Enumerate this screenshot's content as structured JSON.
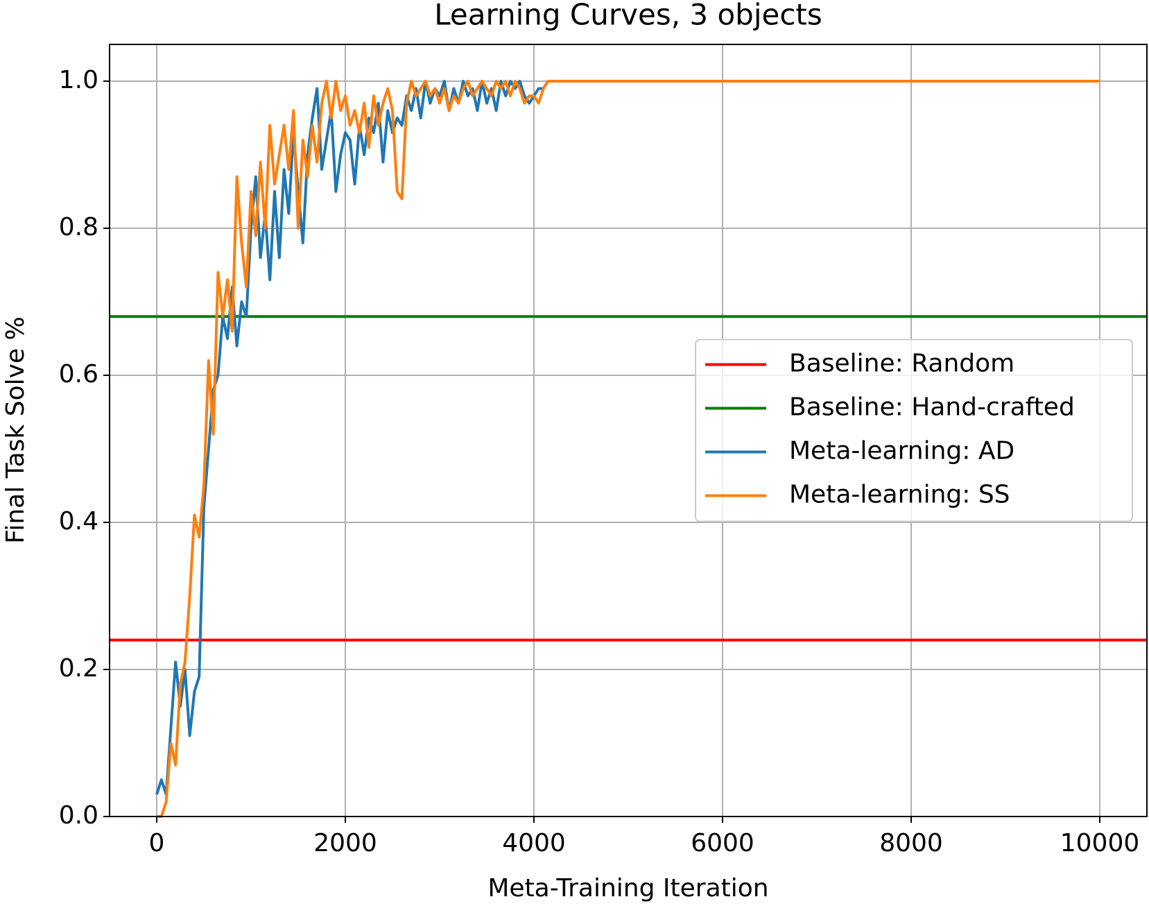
{
  "chart_data": {
    "type": "line",
    "title": "Learning Curves, 3 objects",
    "xlabel": "Meta-Training Iteration",
    "ylabel": "Final Task Solve %",
    "xlim": [
      -500,
      10500
    ],
    "ylim": [
      0,
      1.05
    ],
    "xticks": [
      0,
      2000,
      4000,
      6000,
      8000,
      10000
    ],
    "yticks": [
      {
        "value": 0,
        "label": "0.0"
      },
      0.2,
      0.4,
      0.6,
      0.8,
      {
        "value": 1,
        "label": "1.0"
      }
    ],
    "grid": true,
    "legend": "center right",
    "x": [
      0,
      50,
      100,
      150,
      200,
      250,
      300,
      350,
      400,
      450,
      500,
      550,
      600,
      650,
      700,
      750,
      800,
      850,
      900,
      950,
      1000,
      1050,
      1100,
      1150,
      1200,
      1250,
      1300,
      1350,
      1400,
      1450,
      1500,
      1550,
      1600,
      1650,
      1700,
      1750,
      1800,
      1850,
      1900,
      1950,
      2000,
      2050,
      2100,
      2150,
      2200,
      2250,
      2300,
      2350,
      2400,
      2450,
      2500,
      2550,
      2600,
      2650,
      2700,
      2750,
      2800,
      2850,
      2900,
      2950,
      3000,
      3050,
      3100,
      3150,
      3200,
      3250,
      3300,
      3350,
      3400,
      3450,
      3500,
      3550,
      3600,
      3650,
      3700,
      3750,
      3800,
      3850,
      3900,
      3950,
      4000,
      4050,
      4100,
      4150,
      4200,
      10000
    ],
    "series": [
      {
        "name": "Baseline: Random",
        "color": "#ff0000",
        "y": 0.24
      },
      {
        "name": "Baseline: Hand-crafted",
        "color": "#008000",
        "y": 0.68
      },
      {
        "name": "Meta-learning: AD",
        "color": "#1f77b4",
        "values": [
          0.03,
          0.05,
          0.03,
          0.12,
          0.21,
          0.15,
          0.2,
          0.11,
          0.17,
          0.19,
          0.42,
          0.5,
          0.58,
          0.6,
          0.68,
          0.65,
          0.72,
          0.64,
          0.7,
          0.68,
          0.8,
          0.87,
          0.76,
          0.82,
          0.73,
          0.85,
          0.76,
          0.88,
          0.82,
          0.93,
          0.85,
          0.78,
          0.9,
          0.95,
          0.99,
          0.88,
          0.92,
          0.96,
          0.85,
          0.9,
          0.93,
          0.92,
          0.86,
          0.94,
          0.9,
          0.95,
          0.93,
          0.97,
          0.89,
          0.96,
          0.93,
          0.95,
          0.94,
          0.98,
          0.96,
          0.99,
          0.95,
          1.0,
          0.97,
          0.99,
          0.98,
          1.0,
          0.96,
          0.99,
          0.97,
          1.0,
          0.98,
          0.99,
          0.96,
          1.0,
          0.97,
          0.99,
          0.96,
          1.0,
          0.98,
          1.0,
          0.99,
          1.0,
          0.98,
          0.97,
          0.98,
          0.99,
          0.99,
          1.0,
          1.0,
          1.0
        ]
      },
      {
        "name": "Meta-learning: SS",
        "color": "#ff7f0e",
        "values": [
          0.0,
          0.0,
          0.02,
          0.1,
          0.07,
          0.18,
          0.21,
          0.3,
          0.41,
          0.38,
          0.45,
          0.62,
          0.52,
          0.74,
          0.68,
          0.73,
          0.66,
          0.87,
          0.78,
          0.72,
          0.85,
          0.79,
          0.89,
          0.8,
          0.94,
          0.86,
          0.9,
          0.94,
          0.88,
          0.96,
          0.8,
          0.92,
          0.87,
          0.94,
          0.89,
          0.97,
          1.0,
          0.95,
          1.0,
          0.96,
          0.98,
          0.94,
          0.96,
          0.93,
          0.97,
          0.91,
          0.98,
          0.94,
          0.97,
          0.99,
          0.96,
          0.85,
          0.84,
          0.97,
          1.0,
          0.98,
          0.99,
          1.0,
          0.98,
          0.99,
          0.97,
          0.99,
          0.96,
          0.98,
          0.97,
          0.99,
          1.0,
          0.98,
          0.99,
          1.0,
          0.99,
          0.98,
          1.0,
          0.99,
          1.0,
          0.98,
          1.0,
          0.99,
          0.97,
          0.98,
          0.98,
          0.97,
          0.99,
          1.0,
          1.0,
          1.0
        ]
      }
    ]
  }
}
